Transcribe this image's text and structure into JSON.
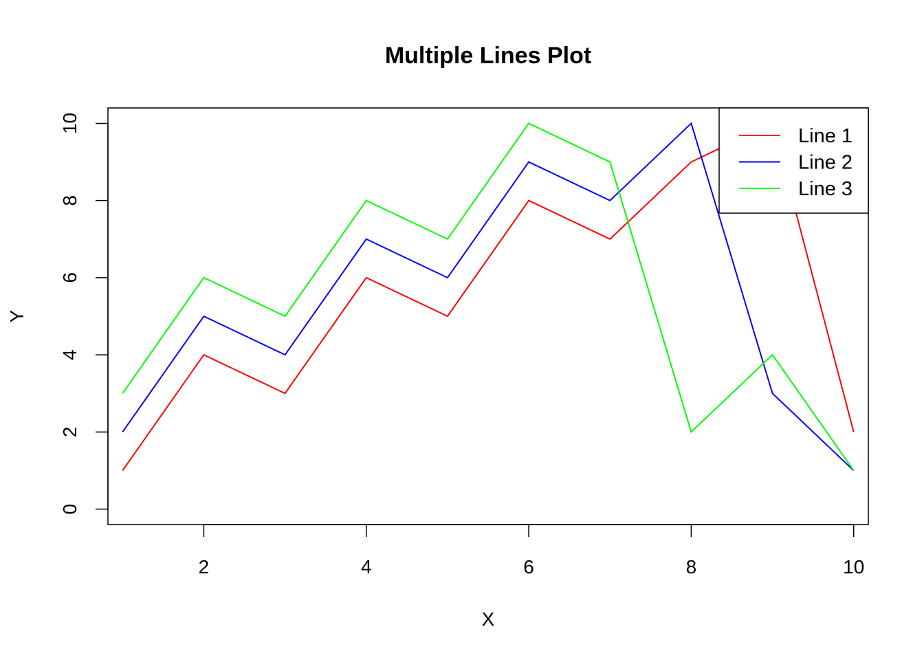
{
  "chart_data": {
    "type": "line",
    "title": "Multiple Lines Plot",
    "xlabel": "X",
    "ylabel": "Y",
    "x": [
      1,
      2,
      3,
      4,
      5,
      6,
      7,
      8,
      9,
      10
    ],
    "xlim": [
      0.82,
      10.18
    ],
    "ylim": [
      -0.4,
      10.4
    ],
    "x_ticks": [
      2,
      4,
      6,
      8,
      10
    ],
    "y_ticks": [
      0,
      2,
      4,
      6,
      8,
      10
    ],
    "grid": false,
    "legend_position": "top-right",
    "series": [
      {
        "name": "Line 1",
        "color": "#FF0000",
        "values": [
          1,
          4,
          3,
          6,
          5,
          8,
          7,
          9,
          10,
          2
        ]
      },
      {
        "name": "Line 2",
        "color": "#0000FF",
        "values": [
          2,
          5,
          4,
          7,
          6,
          9,
          8,
          10,
          3,
          1
        ]
      },
      {
        "name": "Line 3",
        "color": "#00FF00",
        "values": [
          3,
          6,
          5,
          8,
          7,
          10,
          9,
          2,
          4,
          1
        ]
      }
    ]
  }
}
